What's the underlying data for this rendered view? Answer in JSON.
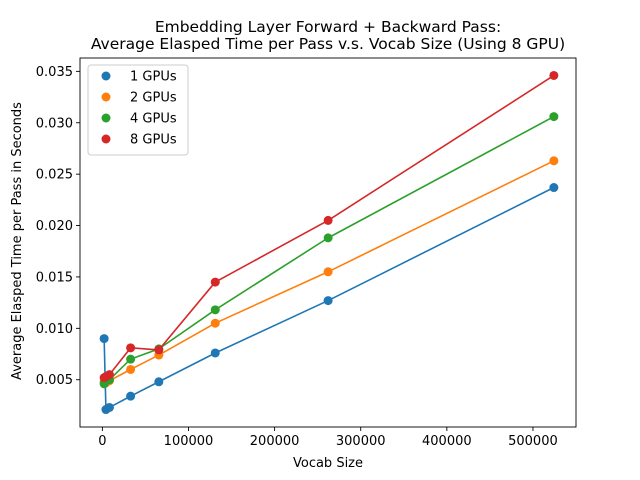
{
  "chart_data": {
    "type": "line",
    "title": "Embedding Layer Forward + Backward Pass:",
    "subtitle": "Average Elasped Time per Pass v.s. Vocab Size (Using 8 GPU)",
    "xlabel": "Vocab Size",
    "ylabel": "Average Elasped Time per Pass in Seconds",
    "xlim": [
      -26000,
      550000
    ],
    "ylim": [
      0.0004,
      0.0363
    ],
    "xticks": [
      0,
      100000,
      200000,
      300000,
      400000,
      500000
    ],
    "xtick_labels": [
      "0",
      "100000",
      "200000",
      "300000",
      "400000",
      "500000"
    ],
    "yticks": [
      0.005,
      0.01,
      0.015,
      0.02,
      0.025,
      0.03,
      0.035
    ],
    "ytick_labels": [
      "0.005",
      "0.010",
      "0.015",
      "0.020",
      "0.025",
      "0.030",
      "0.035"
    ],
    "grid": false,
    "legend_position": "top-left",
    "series": [
      {
        "name": "1 GPUs",
        "color": "#1f77b4",
        "x": [
          2048,
          4096,
          8192,
          32768,
          65536,
          131072,
          262144,
          524288
        ],
        "y": [
          0.009,
          0.0021,
          0.0023,
          0.0034,
          0.0048,
          0.0076,
          0.0127,
          0.0237
        ]
      },
      {
        "name": "2 GPUs",
        "color": "#ff7f0e",
        "x": [
          2048,
          4096,
          8192,
          32768,
          65536,
          131072,
          262144,
          524288
        ],
        "y": [
          0.0048,
          0.0047,
          0.0049,
          0.006,
          0.0074,
          0.0105,
          0.0155,
          0.0263
        ]
      },
      {
        "name": "4 GPUs",
        "color": "#2ca02c",
        "x": [
          2048,
          4096,
          8192,
          32768,
          65536,
          131072,
          262144,
          524288
        ],
        "y": [
          0.0046,
          0.0049,
          0.005,
          0.007,
          0.008,
          0.0118,
          0.0188,
          0.0306
        ]
      },
      {
        "name": "8 GPUs",
        "color": "#d62728",
        "x": [
          2048,
          4096,
          8192,
          32768,
          65536,
          131072,
          262144,
          524288
        ],
        "y": [
          0.0052,
          0.0053,
          0.0055,
          0.0081,
          0.0079,
          0.0145,
          0.0205,
          0.0346
        ]
      }
    ]
  }
}
